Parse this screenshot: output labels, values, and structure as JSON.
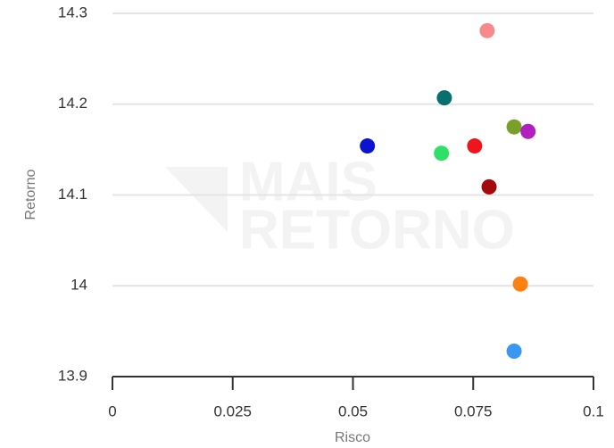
{
  "chart_data": {
    "type": "scatter",
    "x_label": "Risco",
    "y_label": "Retorno",
    "watermark": [
      "MAIS",
      "RETORNO"
    ],
    "x": [
      0.0779,
      0.069,
      0.0835,
      0.0864,
      0.053,
      0.0753,
      0.0684,
      0.0783,
      0.0848,
      0.0835
    ],
    "values": [
      14.281,
      14.207,
      14.175,
      14.17,
      14.154,
      14.154,
      14.146,
      14.109,
      14.002,
      13.928
    ],
    "colors": [
      "#f88a8e",
      "#0b6e6e",
      "#7a9f2a",
      "#b21fbf",
      "#0a14d0",
      "#f0141e",
      "#2ee068",
      "#a50a0a",
      "#ff8012",
      "#3a96f0"
    ],
    "xlim": [
      0,
      0.1
    ],
    "xticks": [
      0,
      0.025,
      0.05,
      0.075,
      0.1
    ],
    "ylim": [
      13.9,
      14.3
    ],
    "yticks": [
      13.9,
      14,
      14.1,
      14.2,
      14.3
    ],
    "grid": true
  }
}
